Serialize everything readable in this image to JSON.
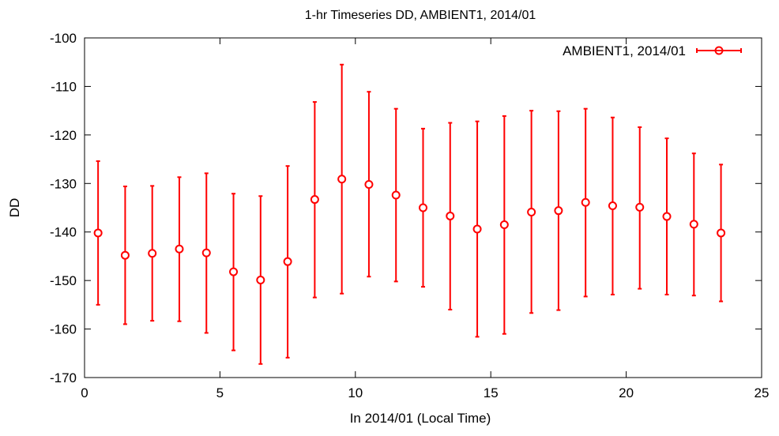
{
  "chart_data": {
    "type": "scatter",
    "title": "1-hr Timeseries DD, AMBIENT1, 2014/01",
    "xlabel": "In 2014/01 (Local Time)",
    "ylabel": "DD",
    "xlim": [
      0,
      25
    ],
    "ylim": [
      -170,
      -100
    ],
    "xticks": [
      0,
      5,
      10,
      15,
      20,
      25
    ],
    "yticks": [
      -170,
      -160,
      -150,
      -140,
      -130,
      -120,
      -110,
      -100
    ],
    "grid": false,
    "legend_position": "top-right",
    "series": [
      {
        "name": "AMBIENT1, 2014/01",
        "color": "#ff0000",
        "marker": "open-circle",
        "error_bars": true,
        "x": [
          0.5,
          1.5,
          2.5,
          3.5,
          4.5,
          5.5,
          6.5,
          7.5,
          8.5,
          9.5,
          10.5,
          11.5,
          12.5,
          13.5,
          14.5,
          15.5,
          16.5,
          17.5,
          18.5,
          19.5,
          20.5,
          21.5,
          22.5,
          23.5
        ],
        "y": [
          -140.2,
          -144.8,
          -144.4,
          -143.5,
          -144.3,
          -148.2,
          -149.9,
          -146.1,
          -133.3,
          -129.1,
          -130.2,
          -132.4,
          -135.0,
          -136.7,
          -139.4,
          -138.5,
          -135.9,
          -135.6,
          -133.9,
          -134.6,
          -134.9,
          -136.8,
          -138.4,
          -140.2
        ],
        "y_low": [
          -155.0,
          -159.0,
          -158.3,
          -158.4,
          -160.8,
          -164.4,
          -167.2,
          -165.9,
          -153.5,
          -152.7,
          -149.2,
          -150.2,
          -151.3,
          -156.0,
          -161.6,
          -161.0,
          -156.7,
          -156.1,
          -153.3,
          -152.9,
          -151.7,
          -152.9,
          -153.1,
          -154.3
        ],
        "y_high": [
          -125.4,
          -130.6,
          -130.5,
          -128.7,
          -127.9,
          -132.1,
          -132.6,
          -126.4,
          -113.2,
          -105.5,
          -111.1,
          -114.6,
          -118.7,
          -117.5,
          -117.2,
          -116.1,
          -115.0,
          -115.1,
          -114.6,
          -116.4,
          -118.4,
          -120.7,
          -123.8,
          -126.1
        ]
      }
    ]
  }
}
